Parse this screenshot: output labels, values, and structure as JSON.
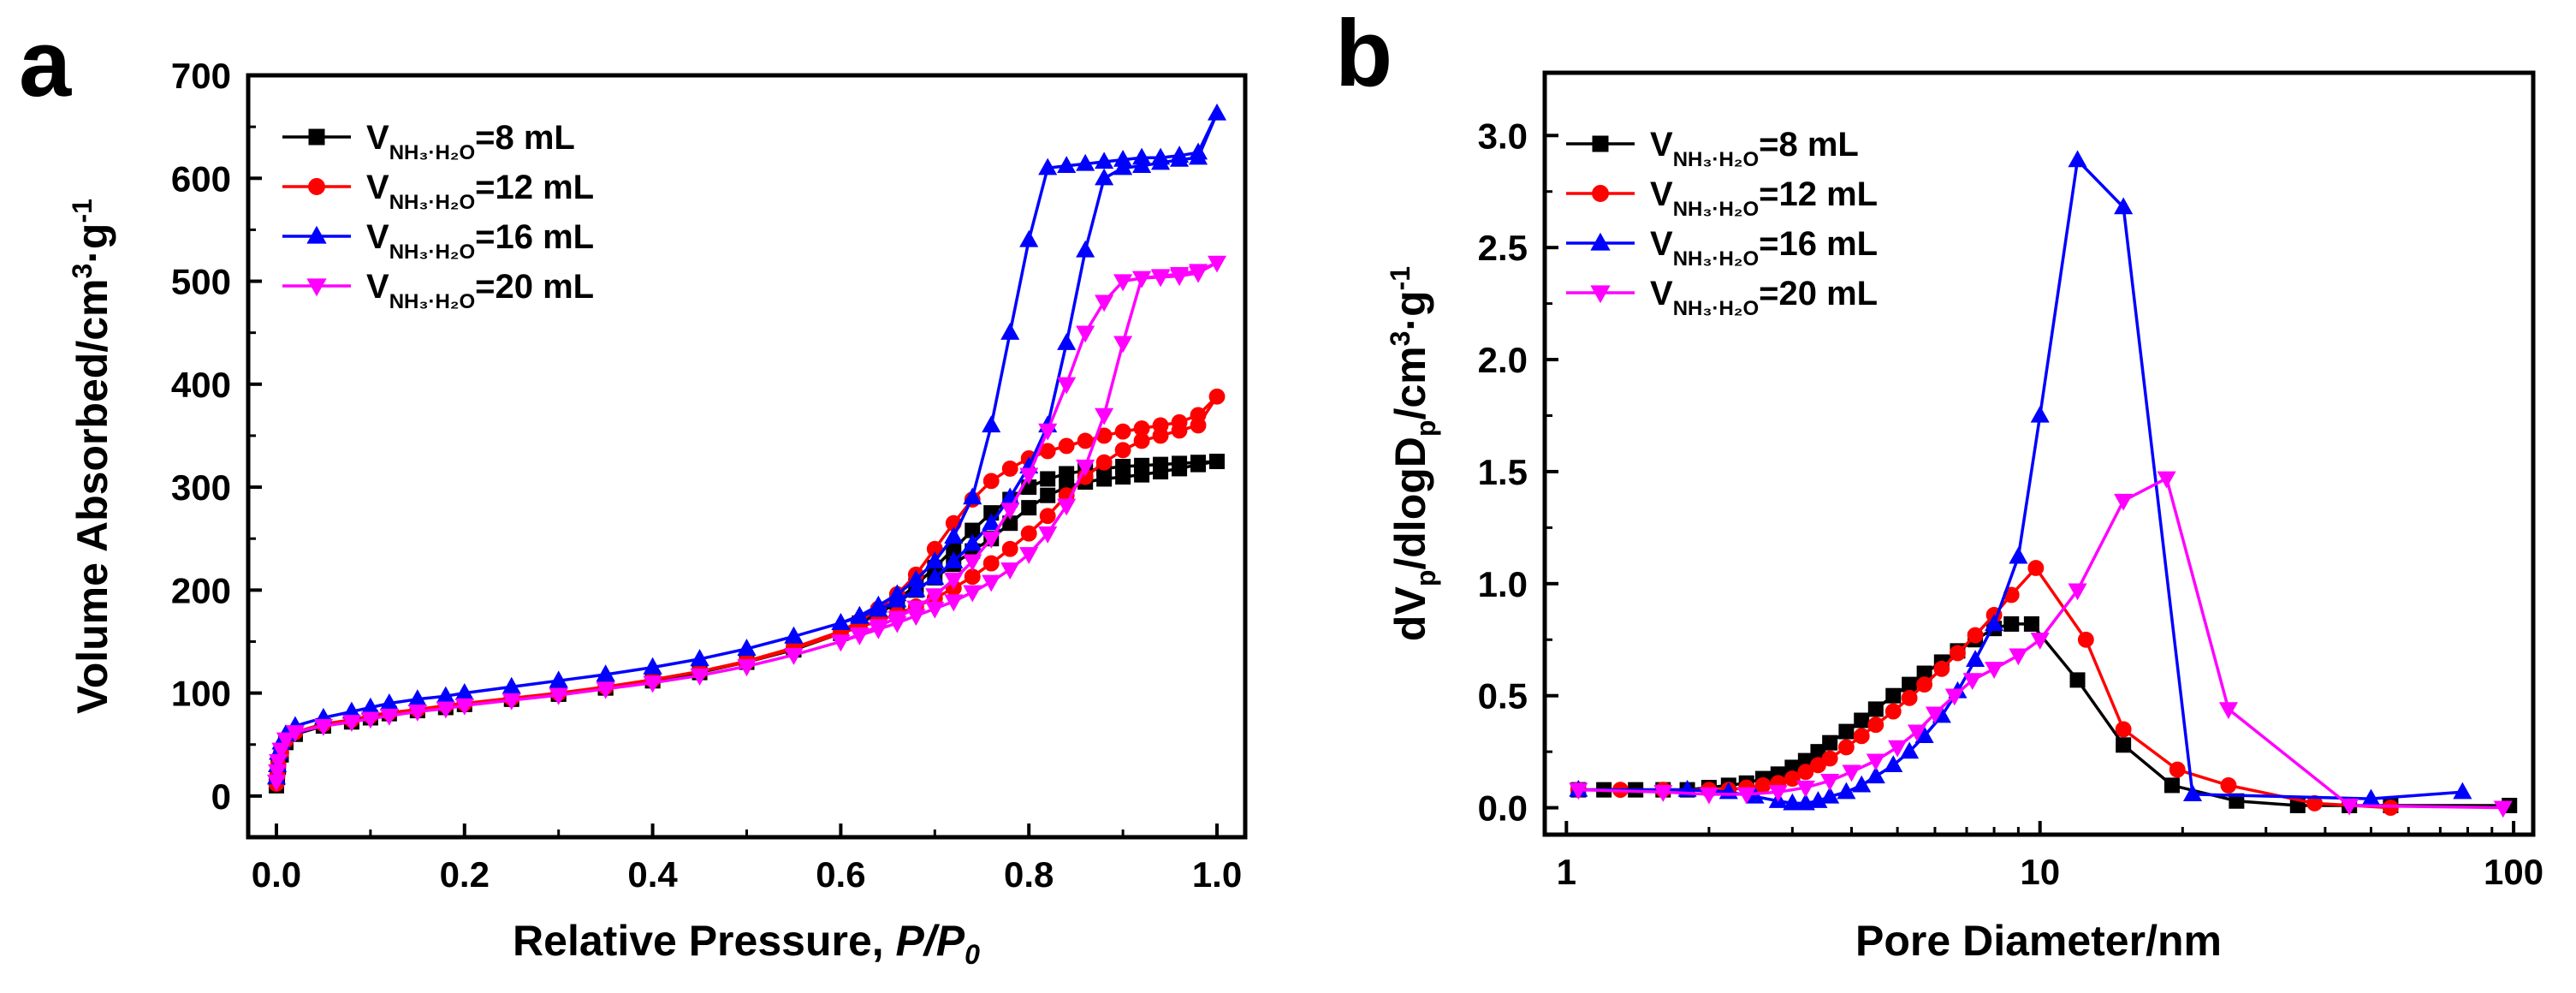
{
  "chart_data": [
    {
      "panel_label": "a",
      "type": "line",
      "title": "",
      "xlabel": "Relative Pressure, ",
      "xlabel_italic": "P/P",
      "xlabel_sub": "0",
      "ylabel": "Volume Absorbed/cm",
      "ylabel_sup1": "3",
      "ylabel_mid": "·g",
      "ylabel_sup2": "-1",
      "xlim": [
        -0.03,
        1.03
      ],
      "ylim": [
        -40,
        700
      ],
      "xscale": "linear",
      "xticks": [
        0.0,
        0.2,
        0.4,
        0.6,
        0.8,
        1.0
      ],
      "xtick_labels": [
        "0.0",
        "0.2",
        "0.4",
        "0.6",
        "0.8",
        "1.0"
      ],
      "yticks": [
        0,
        100,
        200,
        300,
        400,
        500,
        600,
        700
      ],
      "ytick_labels": [
        "0",
        "100",
        "200",
        "300",
        "400",
        "500",
        "600",
        "700"
      ],
      "legend_position": "top-left",
      "series": [
        {
          "legend_prefix": "V",
          "legend_sub": "NH₃·H₂O",
          "legend_suffix": "=8 mL",
          "color": "#000000",
          "marker": "square",
          "x": [
            0.0,
            0.001,
            0.002,
            0.005,
            0.01,
            0.02,
            0.05,
            0.08,
            0.1,
            0.12,
            0.15,
            0.18,
            0.2,
            0.25,
            0.3,
            0.35,
            0.4,
            0.45,
            0.5,
            0.55,
            0.6,
            0.62,
            0.64,
            0.66,
            0.68,
            0.7,
            0.72,
            0.74,
            0.76,
            0.78,
            0.8,
            0.82,
            0.84,
            0.86,
            0.88,
            0.9,
            0.92,
            0.94,
            0.96,
            0.98,
            1.0,
            0.98,
            0.96,
            0.94,
            0.92,
            0.9,
            0.88,
            0.86,
            0.84,
            0.82,
            0.8,
            0.78,
            0.76,
            0.74,
            0.72,
            0.7,
            0.68,
            0.66,
            0.64,
            0.62,
            0.6,
            0.55,
            0.5,
            0.45,
            0.4,
            0.35,
            0.3
          ],
          "y": [
            10,
            18,
            28,
            40,
            52,
            60,
            68,
            72,
            76,
            80,
            83,
            86,
            89,
            94,
            99,
            105,
            112,
            120,
            130,
            142,
            158,
            167,
            178,
            190,
            205,
            222,
            240,
            258,
            275,
            288,
            300,
            308,
            313,
            316,
            318,
            320,
            321,
            322,
            323,
            324,
            325,
            322,
            318,
            315,
            312,
            310,
            308,
            305,
            300,
            292,
            280,
            265,
            250,
            238,
            225,
            212,
            200,
            188,
            177,
            168,
            158,
            142,
            130,
            120,
            112,
            105,
            99
          ]
        },
        {
          "legend_prefix": "V",
          "legend_sub": "NH₃·H₂O",
          "legend_suffix": "=12 mL",
          "color": "#ff0000",
          "marker": "circle",
          "x": [
            0.0,
            0.001,
            0.002,
            0.005,
            0.01,
            0.02,
            0.05,
            0.08,
            0.1,
            0.12,
            0.15,
            0.18,
            0.2,
            0.25,
            0.3,
            0.35,
            0.4,
            0.45,
            0.5,
            0.55,
            0.6,
            0.62,
            0.64,
            0.66,
            0.68,
            0.7,
            0.72,
            0.74,
            0.76,
            0.78,
            0.8,
            0.82,
            0.84,
            0.86,
            0.88,
            0.9,
            0.92,
            0.94,
            0.96,
            0.98,
            1.0,
            0.98,
            0.96,
            0.94,
            0.92,
            0.9,
            0.88,
            0.86,
            0.84,
            0.82,
            0.8,
            0.78,
            0.76,
            0.74,
            0.72,
            0.7,
            0.68,
            0.66,
            0.64,
            0.62,
            0.6,
            0.55,
            0.5,
            0.45,
            0.4,
            0.35,
            0.3
          ],
          "y": [
            12,
            20,
            30,
            42,
            54,
            62,
            70,
            74,
            78,
            81,
            84,
            88,
            90,
            95,
            100,
            106,
            113,
            121,
            131,
            144,
            160,
            170,
            182,
            196,
            215,
            240,
            265,
            288,
            306,
            318,
            328,
            335,
            340,
            345,
            350,
            354,
            357,
            360,
            363,
            370,
            388,
            360,
            355,
            350,
            345,
            336,
            324,
            310,
            292,
            272,
            255,
            240,
            226,
            213,
            202,
            192,
            184,
            177,
            170,
            164,
            158,
            143,
            130,
            121,
            113,
            106,
            100
          ]
        },
        {
          "legend_prefix": "V",
          "legend_sub": "NH₃·H₂O",
          "legend_suffix": "=16 mL",
          "color": "#0000ff",
          "marker": "triangle-up",
          "x": [
            0.0,
            0.001,
            0.002,
            0.005,
            0.01,
            0.02,
            0.05,
            0.08,
            0.1,
            0.12,
            0.15,
            0.18,
            0.2,
            0.25,
            0.3,
            0.35,
            0.4,
            0.45,
            0.5,
            0.55,
            0.6,
            0.62,
            0.64,
            0.66,
            0.68,
            0.7,
            0.72,
            0.74,
            0.76,
            0.78,
            0.8,
            0.82,
            0.84,
            0.86,
            0.88,
            0.9,
            0.92,
            0.94,
            0.96,
            0.98,
            1.0,
            0.98,
            0.96,
            0.94,
            0.92,
            0.9,
            0.88,
            0.86,
            0.84,
            0.82,
            0.8,
            0.78,
            0.76,
            0.74,
            0.72,
            0.7,
            0.68,
            0.66,
            0.64,
            0.62,
            0.6,
            0.55,
            0.5,
            0.45,
            0.4,
            0.35,
            0.3
          ],
          "y": [
            18,
            30,
            42,
            52,
            60,
            68,
            76,
            82,
            86,
            90,
            94,
            97,
            100,
            106,
            112,
            118,
            125,
            133,
            143,
            155,
            168,
            175,
            185,
            196,
            210,
            228,
            252,
            290,
            360,
            450,
            540,
            610,
            612,
            614,
            616,
            618,
            620,
            620,
            622,
            625,
            663,
            620,
            618,
            615,
            612,
            610,
            600,
            530,
            440,
            360,
            320,
            290,
            265,
            245,
            228,
            212,
            200,
            190,
            181,
            174,
            168,
            155,
            143,
            133,
            125,
            118,
            112
          ]
        },
        {
          "legend_prefix": "V",
          "legend_sub": "NH₃·H₂O",
          "legend_suffix": "=20 mL",
          "color": "#ff00ff",
          "marker": "triangle-down",
          "x": [
            0.0,
            0.001,
            0.002,
            0.005,
            0.01,
            0.02,
            0.05,
            0.08,
            0.1,
            0.12,
            0.15,
            0.18,
            0.2,
            0.25,
            0.3,
            0.35,
            0.4,
            0.45,
            0.5,
            0.55,
            0.6,
            0.62,
            0.64,
            0.66,
            0.68,
            0.7,
            0.72,
            0.74,
            0.76,
            0.78,
            0.8,
            0.82,
            0.84,
            0.86,
            0.88,
            0.9,
            0.92,
            0.94,
            0.96,
            0.98,
            1.0,
            0.98,
            0.96,
            0.94,
            0.92,
            0.9,
            0.88,
            0.86,
            0.84,
            0.82,
            0.8,
            0.78,
            0.76,
            0.74,
            0.72,
            0.7,
            0.68,
            0.66,
            0.64,
            0.62,
            0.6,
            0.55,
            0.5,
            0.45,
            0.4,
            0.35,
            0.3
          ],
          "y": [
            14,
            24,
            34,
            45,
            55,
            62,
            68,
            72,
            75,
            78,
            82,
            85,
            88,
            93,
            98,
            104,
            110,
            117,
            126,
            137,
            150,
            157,
            165,
            173,
            183,
            195,
            210,
            228,
            250,
            278,
            312,
            355,
            400,
            450,
            480,
            500,
            503,
            505,
            507,
            510,
            518,
            508,
            505,
            504,
            503,
            440,
            370,
            320,
            282,
            255,
            235,
            220,
            208,
            198,
            189,
            182,
            175,
            168,
            162,
            156,
            150,
            137,
            126,
            117,
            110,
            104,
            98
          ]
        }
      ]
    },
    {
      "panel_label": "b",
      "type": "line",
      "title": "",
      "xlabel": "Pore Diameter/nm",
      "ylabel": "dV",
      "ylabel_sub1": "p",
      "ylabel_mid": "/dlogD",
      "ylabel_sub2": "p",
      "ylabel_mid2": "/cm",
      "ylabel_sup1": "3",
      "ylabel_mid3": "·g",
      "ylabel_sup2": "-1",
      "xlim": [
        0.9,
        110
      ],
      "ylim": [
        -0.12,
        3.28
      ],
      "xscale": "log",
      "xticks": [
        1,
        10,
        100
      ],
      "xtick_labels": [
        "1",
        "10",
        "100"
      ],
      "yticks": [
        0.0,
        0.5,
        1.0,
        1.5,
        2.0,
        2.5,
        3.0
      ],
      "ytick_labels": [
        "0.0",
        "0.5",
        "1.0",
        "1.5",
        "2.0",
        "2.5",
        "3.0"
      ],
      "legend_position": "top-left",
      "series": [
        {
          "legend_prefix": "V",
          "legend_sub": "NH₃·H₂O",
          "legend_suffix": "=8 mL",
          "color": "#000000",
          "marker": "square",
          "x": [
            1.06,
            1.2,
            1.4,
            1.6,
            1.8,
            2.0,
            2.2,
            2.4,
            2.6,
            2.8,
            3.0,
            3.2,
            3.4,
            3.6,
            3.9,
            4.2,
            4.5,
            4.9,
            5.3,
            5.7,
            6.2,
            6.7,
            7.3,
            8.0,
            8.7,
            9.6,
            12.0,
            15.0,
            19.0,
            26.0,
            35.0,
            45.0,
            55.0,
            98.0
          ],
          "y": [
            0.08,
            0.08,
            0.08,
            0.08,
            0.08,
            0.09,
            0.1,
            0.11,
            0.13,
            0.15,
            0.18,
            0.21,
            0.25,
            0.29,
            0.34,
            0.39,
            0.44,
            0.5,
            0.55,
            0.6,
            0.65,
            0.7,
            0.75,
            0.8,
            0.82,
            0.82,
            0.57,
            0.28,
            0.1,
            0.03,
            0.01,
            0.01,
            0.01,
            0.01
          ]
        },
        {
          "legend_prefix": "V",
          "legend_sub": "NH₃·H₂O",
          "legend_suffix": "=12 mL",
          "color": "#ff0000",
          "marker": "circle",
          "x": [
            1.06,
            1.3,
            1.6,
            2.0,
            2.2,
            2.4,
            2.6,
            2.8,
            3.0,
            3.2,
            3.4,
            3.6,
            3.9,
            4.2,
            4.5,
            4.9,
            5.3,
            5.7,
            6.2,
            6.7,
            7.3,
            8.0,
            8.7,
            9.8,
            12.5,
            15.0,
            19.5,
            25.0,
            38.0,
            55.0
          ],
          "y": [
            0.08,
            0.08,
            0.08,
            0.08,
            0.08,
            0.09,
            0.1,
            0.11,
            0.13,
            0.16,
            0.19,
            0.22,
            0.27,
            0.32,
            0.37,
            0.43,
            0.49,
            0.55,
            0.62,
            0.69,
            0.77,
            0.86,
            0.95,
            1.07,
            0.75,
            0.35,
            0.17,
            0.1,
            0.02,
            0.0
          ]
        },
        {
          "legend_prefix": "V",
          "legend_sub": "NH₃·H₂O",
          "legend_suffix": "=16 mL",
          "color": "#0000ff",
          "marker": "triangle-up",
          "x": [
            1.06,
            1.8,
            2.2,
            2.5,
            2.8,
            3.0,
            3.2,
            3.4,
            3.6,
            3.9,
            4.2,
            4.5,
            4.9,
            5.3,
            5.7,
            6.2,
            6.7,
            7.3,
            8.0,
            9.0,
            10.0,
            12.0,
            15.0,
            21.0,
            50.0,
            78.0
          ],
          "y": [
            0.08,
            0.08,
            0.07,
            0.05,
            0.03,
            0.02,
            0.02,
            0.03,
            0.05,
            0.07,
            0.1,
            0.14,
            0.19,
            0.25,
            0.32,
            0.41,
            0.52,
            0.66,
            0.82,
            1.12,
            1.75,
            2.89,
            2.68,
            0.06,
            0.04,
            0.07
          ]
        },
        {
          "legend_prefix": "V",
          "legend_sub": "NH₃·H₂O",
          "legend_suffix": "=20 mL",
          "color": "#ff00ff",
          "marker": "triangle-down",
          "x": [
            1.06,
            1.6,
            2.0,
            2.4,
            2.8,
            3.2,
            3.6,
            4.0,
            4.5,
            5.0,
            5.5,
            6.0,
            6.6,
            7.2,
            8.0,
            9.0,
            10.0,
            12.0,
            15.0,
            18.5,
            25.0,
            45.0,
            95.0
          ],
          "y": [
            0.08,
            0.07,
            0.06,
            0.06,
            0.07,
            0.09,
            0.12,
            0.16,
            0.21,
            0.27,
            0.34,
            0.42,
            0.5,
            0.57,
            0.62,
            0.68,
            0.75,
            0.97,
            1.37,
            1.47,
            0.44,
            0.01,
            0.0
          ]
        }
      ]
    }
  ]
}
